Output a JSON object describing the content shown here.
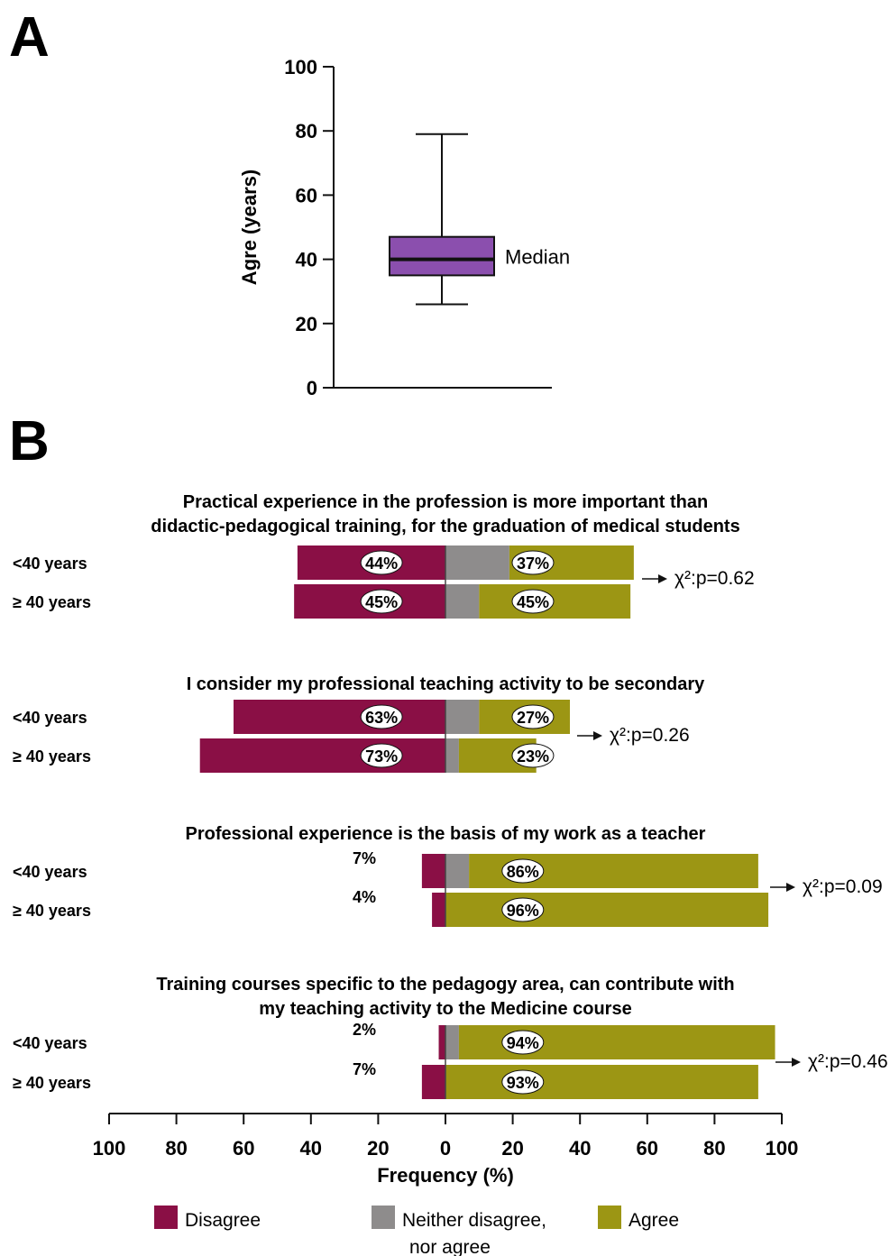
{
  "colors": {
    "disagree": "#8a0f45",
    "neutral": "#8e8c8c",
    "agree": "#9c9614",
    "box": "#8b4fae",
    "axis": "#111111"
  },
  "chart_data": [
    {
      "panel": "A",
      "type": "box",
      "ylabel": "Agre (years)",
      "yticks": [
        0,
        20,
        40,
        60,
        80,
        100
      ],
      "ylim": [
        0,
        100
      ],
      "box": {
        "min": 26,
        "q1": 35,
        "median": 40,
        "q3": 47,
        "max": 79
      },
      "annotation": "Median"
    },
    {
      "panel": "B",
      "type": "bar",
      "orientation": "horizontal-diverging",
      "xlabel": "Frequency (%)",
      "xticks": [
        100,
        80,
        60,
        40,
        20,
        0,
        20,
        40,
        60,
        80,
        100
      ],
      "xlim": [
        -100,
        100
      ],
      "legend": [
        {
          "key": "disagree",
          "label_line1": "Disagree",
          "label_line2": ""
        },
        {
          "key": "neutral",
          "label_line1": "Neither disagree,",
          "label_line2": "nor agree"
        },
        {
          "key": "agree",
          "label_line1": "Agree",
          "label_line2": ""
        }
      ],
      "legend_position": "bottom",
      "questions": [
        {
          "title_lines": [
            "Practical experience in the profession is more important than",
            "didactic-pedagogical training, for the graduation of medical students"
          ],
          "test": "χ²:p=0.62",
          "rows": [
            {
              "group": "<40 years",
              "disagree": 44,
              "neutral": 19,
              "agree": 37,
              "disagree_label": "44%",
              "agree_label": "37%"
            },
            {
              "group": "≥ 40 years",
              "disagree": 45,
              "neutral": 10,
              "agree": 45,
              "disagree_label": "45%",
              "agree_label": "45%"
            }
          ]
        },
        {
          "title_lines": [
            "I consider my professional teaching activity to be secondary"
          ],
          "test": "χ²:p=0.26",
          "rows": [
            {
              "group": "<40 years",
              "disagree": 63,
              "neutral": 10,
              "agree": 27,
              "disagree_label": "63%",
              "agree_label": "27%"
            },
            {
              "group": "≥ 40 years",
              "disagree": 73,
              "neutral": 4,
              "agree": 23,
              "disagree_label": "73%",
              "agree_label": "23%"
            }
          ]
        },
        {
          "title_lines": [
            "Professional experience is the basis of my work as a teacher"
          ],
          "test": "χ²:p=0.09",
          "rows": [
            {
              "group": "<40 years",
              "disagree": 7,
              "neutral": 7,
              "agree": 86,
              "disagree_label": "7%",
              "agree_label": "86%"
            },
            {
              "group": "≥ 40 years",
              "disagree": 4,
              "neutral": 0,
              "agree": 96,
              "disagree_label": "4%",
              "agree_label": "96%"
            }
          ]
        },
        {
          "title_lines": [
            "Training courses specific to the pedagogy area, can contribute with",
            "my teaching activity to the Medicine course"
          ],
          "test": "χ²:p=0.46",
          "rows": [
            {
              "group": "<40 years",
              "disagree": 2,
              "neutral": 4,
              "agree": 94,
              "disagree_label": "2%",
              "agree_label": "94%"
            },
            {
              "group": "≥ 40 years",
              "disagree": 7,
              "neutral": 0,
              "agree": 93,
              "disagree_label": "7%",
              "agree_label": "93%"
            }
          ]
        }
      ]
    }
  ],
  "panel_labels": [
    "A",
    "B"
  ]
}
